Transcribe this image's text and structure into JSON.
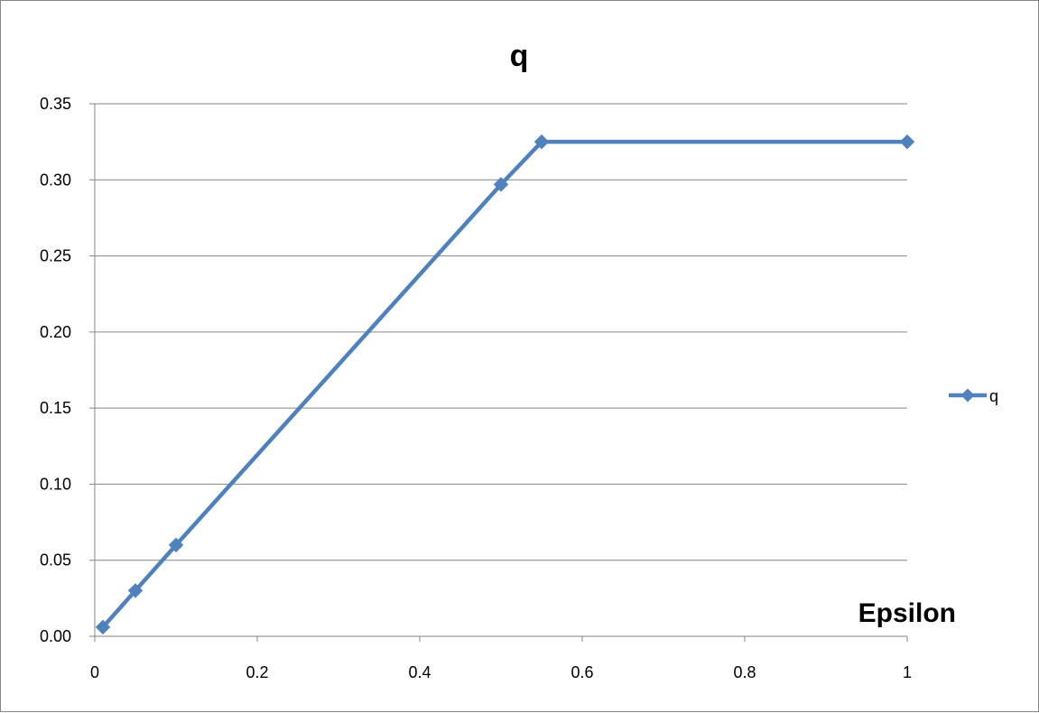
{
  "chart_data": {
    "type": "line",
    "title": "q",
    "xlabel": "Epsilon",
    "ylabel": "",
    "xlim": [
      0,
      1
    ],
    "ylim": [
      0,
      0.35
    ],
    "xticks": [
      0,
      0.2,
      0.4,
      0.6,
      0.8,
      1
    ],
    "xtick_labels": [
      "0",
      "0.2",
      "0.4",
      "0.6",
      "0.8",
      "1"
    ],
    "yticks": [
      0,
      0.05,
      0.1,
      0.15,
      0.2,
      0.25,
      0.3,
      0.35
    ],
    "ytick_labels": [
      "0.00",
      "0.05",
      "0.10",
      "0.15",
      "0.20",
      "0.25",
      "0.30",
      "0.35"
    ],
    "grid": "horizontal",
    "legend": "right",
    "series": [
      {
        "name": "q",
        "color": "#4F81BD",
        "marker": "diamond",
        "x": [
          0.01,
          0.05,
          0.1,
          0.5,
          0.55,
          1
        ],
        "y": [
          0.006,
          0.03,
          0.06,
          0.297,
          0.325,
          0.325
        ]
      }
    ]
  }
}
